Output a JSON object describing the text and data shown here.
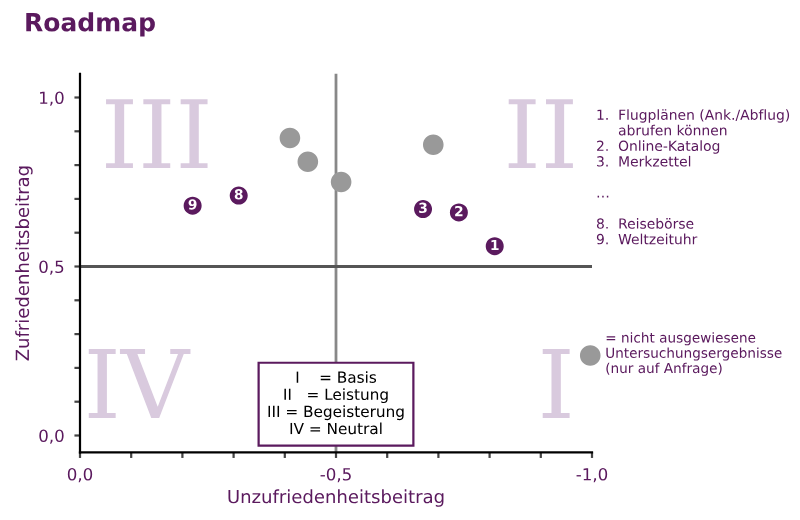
{
  "chart_data": {
    "type": "scatter",
    "title": "Roadmap",
    "xlabel": "Unzufriedenheitsbeitrag",
    "ylabel": "Zufriedenheitsbeitrag",
    "xlim": [
      0,
      -1.0
    ],
    "ylim": [
      -0.05,
      1.07
    ],
    "xticks": [
      {
        "value": 0,
        "label": "0,0"
      },
      {
        "value": -0.1,
        "label": null
      },
      {
        "value": -0.2,
        "label": null
      },
      {
        "value": -0.3,
        "label": null
      },
      {
        "value": -0.4,
        "label": null
      },
      {
        "value": -0.5,
        "label": "-0,5"
      },
      {
        "value": -0.6,
        "label": null
      },
      {
        "value": -0.7,
        "label": null
      },
      {
        "value": -0.8,
        "label": null
      },
      {
        "value": -0.9,
        "label": null
      },
      {
        "value": -1.0,
        "label": "-1,0"
      }
    ],
    "yticks": [
      {
        "value": 0,
        "label": "0,0"
      },
      {
        "value": 0.1,
        "label": null
      },
      {
        "value": 0.2,
        "label": null
      },
      {
        "value": 0.3,
        "label": null
      },
      {
        "value": 0.4,
        "label": null
      },
      {
        "value": 0.5,
        "label": "0,5"
      },
      {
        "value": 0.6,
        "label": null
      },
      {
        "value": 0.7,
        "label": null
      },
      {
        "value": 0.8,
        "label": null
      },
      {
        "value": 0.9,
        "label": null
      },
      {
        "value": 1.0,
        "label": "1,0"
      }
    ],
    "grid": false,
    "legend": "right",
    "marker": "circle",
    "ref_lines": [
      {
        "axis": "x",
        "value": -0.5,
        "color": "#888888"
      },
      {
        "axis": "y",
        "value": 0.5,
        "color": "#555555"
      }
    ],
    "series": [
      {
        "color": "#5b1a5e",
        "x": [
          -0.81,
          -0.74,
          -0.67,
          -0.31,
          -0.22
        ],
        "values": [
          0.56,
          0.66,
          0.67,
          0.71,
          0.68
        ]
      },
      {
        "name": "= nicht ausgewiesene\nUntersuchungsergebnisse\n(nur auf Anfrage)",
        "color": "#999999",
        "x": [
          -0.41,
          -0.445,
          -0.51,
          -0.69
        ],
        "values": [
          0.88,
          0.81,
          0.75,
          0.86
        ]
      }
    ],
    "annotations": [
      "III",
      "II",
      "IV",
      "I",
      {
        "text": "1",
        "x": -0.81,
        "y": 0.56
      },
      {
        "text": "2",
        "x": -0.74,
        "y": 0.66
      },
      {
        "text": "3",
        "x": -0.67,
        "y": 0.67
      },
      {
        "text": "8",
        "x": -0.31,
        "y": 0.71
      },
      {
        "text": "9",
        "x": -0.22,
        "y": 0.68
      },
      "I    = Basis\nII   = Leistung\nIII = Begeisterung\nIV = Neutral",
      "1.  Flugplänen (Ank./Abflug)\n     abrufen können\n2.  Online-Katalog\n3.  Merkzettel\n\n…\n\n8.  Reisebörse\n9.  Weltzeituhr"
    ]
  }
}
